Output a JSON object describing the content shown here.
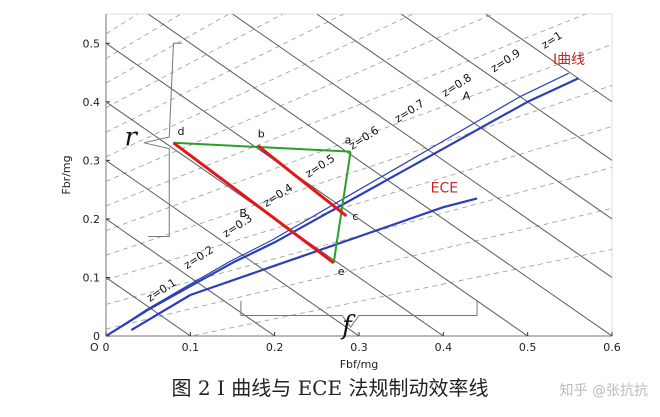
{
  "chart_data": {
    "type": "line",
    "xlabel": "Fbf/mg",
    "ylabel": "Fbr/mg",
    "origin_label": "O",
    "xlim": [
      0,
      0.6
    ],
    "ylim": [
      0,
      0.55
    ],
    "x_ticks": [
      "0",
      "0.1",
      "0.2",
      "0.3",
      "0.4",
      "0.5",
      "0.6"
    ],
    "y_ticks": [
      "0",
      "0.1",
      "0.2",
      "0.3",
      "0.4",
      "0.5"
    ],
    "x_tick_values": [
      0,
      0.1,
      0.2,
      0.3,
      0.4,
      0.5,
      0.6
    ],
    "y_tick_values": [
      0,
      0.1,
      0.2,
      0.3,
      0.4,
      0.5
    ],
    "z_lines": [
      {
        "z": 0.1,
        "label": "z=0.1"
      },
      {
        "z": 0.2,
        "label": "z=0.2"
      },
      {
        "z": 0.3,
        "label": "z=0.3"
      },
      {
        "z": 0.4,
        "label": "z=0.4"
      },
      {
        "z": 0.5,
        "label": "z=0.5"
      },
      {
        "z": 0.6,
        "label": "z=0.6"
      },
      {
        "z": 0.7,
        "label": "z=0.7"
      },
      {
        "z": 0.8,
        "label": "z=0.8"
      },
      {
        "z": 0.9,
        "label": "z=0.9"
      },
      {
        "z": 1.0,
        "label": "z=1"
      }
    ],
    "i_curve": {
      "label": "I曲线",
      "color": "#c0282e",
      "x": [
        0,
        0.05,
        0.1,
        0.15,
        0.2,
        0.25,
        0.3,
        0.35,
        0.4,
        0.45,
        0.5,
        0.56
      ],
      "y": [
        0,
        0.045,
        0.085,
        0.125,
        0.16,
        0.2,
        0.24,
        0.28,
        0.32,
        0.36,
        0.4,
        0.44
      ]
    },
    "ece_curve": {
      "label": "ECE",
      "color": "#c0282e",
      "x": [
        0.03,
        0.1,
        0.2,
        0.3,
        0.4,
        0.44
      ],
      "y": [
        0.01,
        0.07,
        0.12,
        0.17,
        0.22,
        0.235
      ]
    },
    "points": [
      {
        "name": "A",
        "x": 0.43,
        "y": 0.39
      },
      {
        "name": "a",
        "x": 0.29,
        "y": 0.315
      },
      {
        "name": "b",
        "x": 0.18,
        "y": 0.325
      },
      {
        "name": "c",
        "x": 0.285,
        "y": 0.205
      },
      {
        "name": "d",
        "x": 0.08,
        "y": 0.33
      },
      {
        "name": "B",
        "x": 0.17,
        "y": 0.21
      },
      {
        "name": "e",
        "x": 0.27,
        "y": 0.125
      }
    ],
    "green_lines": [
      [
        "d",
        "a"
      ],
      [
        "a",
        "e"
      ]
    ],
    "red_lines": [
      [
        "d",
        "e"
      ],
      [
        "b",
        "c"
      ]
    ],
    "brace_labels": {
      "r": "r",
      "f": "f"
    }
  },
  "caption": "图 2 I 曲线与 ECE 法规制动效率线",
  "watermark": "知乎 @张抗抗"
}
